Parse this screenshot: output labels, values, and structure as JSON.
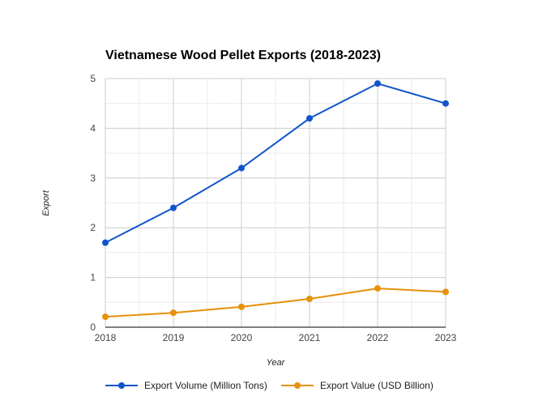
{
  "chart_data": {
    "type": "line",
    "title": "Vietnamese Wood Pellet Exports (2018-2023)",
    "xlabel": "Year",
    "ylabel": "Export",
    "x": [
      2018,
      2019,
      2020,
      2021,
      2022,
      2023
    ],
    "x_tick_labels": [
      "2018",
      "2019",
      "2020",
      "2021",
      "2022",
      "2023"
    ],
    "y_tick_labels": [
      "0",
      "1",
      "2",
      "3",
      "4",
      "5"
    ],
    "ylim": [
      0,
      5
    ],
    "xlim": [
      2018,
      2023
    ],
    "grid": true,
    "legend_position": "bottom",
    "series": [
      {
        "name": "Export Volume (Million Tons)",
        "color": "#1155cc",
        "values": [
          1.7,
          2.4,
          3.2,
          4.2,
          4.9,
          4.5
        ]
      },
      {
        "name": "Export Value (USD Billion)",
        "color": "#e69109",
        "values": [
          0.21,
          0.29,
          0.41,
          0.57,
          0.78,
          0.71
        ]
      }
    ]
  }
}
